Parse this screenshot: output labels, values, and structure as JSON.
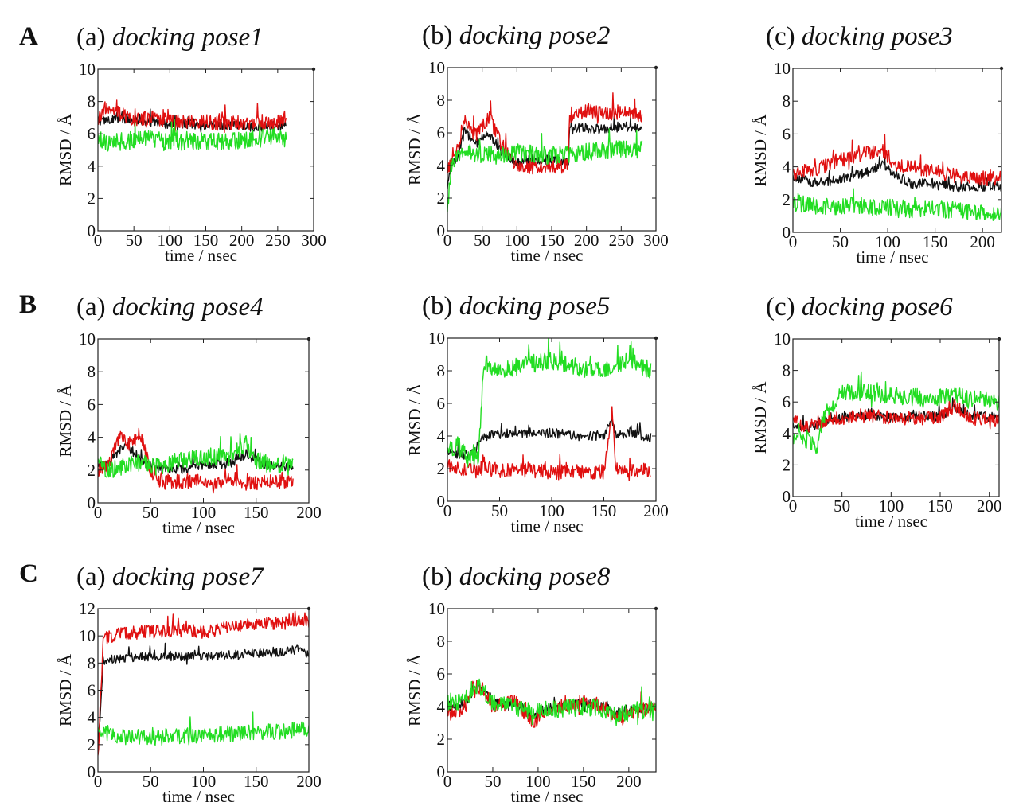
{
  "colors": {
    "black": "#111111",
    "red": "#e01010",
    "green": "#22dd22",
    "axis": "#222222"
  },
  "row_labels": [
    "A",
    "B",
    "C"
  ],
  "chart_data": [
    {
      "type": "line",
      "row": "A",
      "prefix": "(a)",
      "title": "docking pose1",
      "xlabel": "time / nsec",
      "ylabel": "RMSD / Å",
      "xlim": [
        0,
        300
      ],
      "ylim": [
        0,
        10
      ],
      "xticks": [
        0,
        50,
        100,
        150,
        200,
        250,
        300
      ],
      "yticks": [
        0,
        2,
        4,
        6,
        8,
        10
      ],
      "series": [
        {
          "color": "black",
          "x": [
            0,
            25,
            50,
            75,
            100,
            125,
            150,
            175,
            200,
            225,
            250,
            262
          ],
          "y": [
            6.8,
            7.0,
            6.9,
            6.7,
            6.6,
            6.6,
            6.5,
            6.5,
            6.5,
            6.4,
            6.5,
            6.6
          ]
        },
        {
          "color": "red",
          "x": [
            0,
            10,
            25,
            50,
            75,
            100,
            125,
            150,
            175,
            200,
            225,
            250,
            262
          ],
          "y": [
            6.9,
            7.6,
            7.4,
            6.8,
            7.0,
            6.8,
            6.7,
            6.8,
            6.6,
            6.7,
            6.6,
            6.8,
            7.0
          ]
        },
        {
          "color": "green",
          "x": [
            0,
            25,
            50,
            75,
            100,
            125,
            150,
            175,
            200,
            225,
            250,
            262
          ],
          "y": [
            5.4,
            5.5,
            5.6,
            5.7,
            5.4,
            5.6,
            5.5,
            5.5,
            5.6,
            5.7,
            5.9,
            5.6
          ]
        }
      ]
    },
    {
      "type": "line",
      "row": "A",
      "prefix": "(b)",
      "title": "docking pose2",
      "xlabel": "time / nsec",
      "ylabel": "RMSD / Å",
      "xlim": [
        0,
        300
      ],
      "ylim": [
        0,
        10
      ],
      "xticks": [
        0,
        50,
        100,
        150,
        200,
        250,
        300
      ],
      "yticks": [
        0,
        2,
        4,
        6,
        8,
        10
      ],
      "series": [
        {
          "color": "black",
          "x": [
            0,
            5,
            15,
            25,
            40,
            60,
            75,
            100,
            125,
            150,
            174,
            176,
            200,
            225,
            250,
            280
          ],
          "y": [
            2.5,
            4.2,
            4.5,
            6.2,
            5.3,
            6.0,
            5.0,
            4.2,
            4.3,
            4.4,
            4.2,
            6.3,
            6.3,
            6.2,
            6.4,
            6.3
          ]
        },
        {
          "color": "red",
          "x": [
            0,
            5,
            15,
            25,
            40,
            60,
            75,
            100,
            125,
            150,
            174,
            176,
            200,
            225,
            250,
            280
          ],
          "y": [
            3.5,
            4.5,
            5.0,
            7.0,
            5.8,
            7.0,
            5.5,
            4.0,
            3.9,
            3.9,
            4.0,
            7.0,
            7.4,
            7.2,
            7.3,
            7.0
          ]
        },
        {
          "color": "green",
          "x": [
            0,
            5,
            15,
            25,
            50,
            75,
            100,
            125,
            150,
            175,
            200,
            225,
            250,
            280
          ],
          "y": [
            1.0,
            4.0,
            4.6,
            4.8,
            4.7,
            4.6,
            4.8,
            4.7,
            4.6,
            4.7,
            4.8,
            4.9,
            5.0,
            5.0
          ]
        }
      ]
    },
    {
      "type": "line",
      "row": "A",
      "prefix": "(c)",
      "title": "docking pose3",
      "xlabel": "time / nsec",
      "ylabel": "RMSD / Å",
      "xlim": [
        0,
        220
      ],
      "ylim": [
        0,
        10
      ],
      "xticks": [
        0,
        50,
        100,
        150,
        200
      ],
      "yticks": [
        0,
        2,
        4,
        6,
        8,
        10
      ],
      "series": [
        {
          "color": "black",
          "x": [
            0,
            25,
            50,
            75,
            95,
            110,
            125,
            150,
            175,
            200,
            220
          ],
          "y": [
            3.4,
            3.0,
            3.2,
            3.6,
            4.2,
            3.4,
            3.0,
            3.0,
            2.8,
            2.8,
            2.8
          ]
        },
        {
          "color": "red",
          "x": [
            0,
            25,
            50,
            75,
            95,
            110,
            125,
            150,
            175,
            200,
            220
          ],
          "y": [
            3.6,
            3.8,
            4.4,
            4.8,
            5.0,
            4.0,
            4.0,
            3.7,
            3.4,
            3.3,
            3.3
          ]
        },
        {
          "color": "green",
          "x": [
            0,
            25,
            50,
            75,
            100,
            125,
            150,
            175,
            200,
            220
          ],
          "y": [
            1.8,
            1.6,
            1.6,
            1.6,
            1.5,
            1.4,
            1.5,
            1.3,
            1.3,
            1.2
          ]
        }
      ]
    },
    {
      "type": "line",
      "row": "B",
      "prefix": "(a)",
      "title": "docking pose4",
      "xlabel": "time / nsec",
      "ylabel": "RMSD / Å",
      "xlim": [
        0,
        200
      ],
      "ylim": [
        0,
        10
      ],
      "xticks": [
        0,
        50,
        100,
        150,
        200
      ],
      "yticks": [
        0,
        2,
        4,
        6,
        8,
        10
      ],
      "series": [
        {
          "color": "black",
          "x": [
            0,
            10,
            25,
            35,
            45,
            55,
            75,
            100,
            125,
            140,
            150,
            165,
            185
          ],
          "y": [
            2.2,
            2.4,
            3.6,
            3.0,
            2.4,
            2.1,
            2.0,
            2.3,
            2.4,
            3.0,
            2.6,
            2.2,
            2.2
          ]
        },
        {
          "color": "red",
          "x": [
            0,
            10,
            20,
            30,
            40,
            50,
            55,
            75,
            100,
            125,
            150,
            165,
            185
          ],
          "y": [
            2.0,
            2.2,
            4.0,
            3.6,
            4.2,
            2.0,
            1.4,
            1.3,
            1.3,
            1.2,
            1.2,
            1.3,
            1.2
          ]
        },
        {
          "color": "green",
          "x": [
            0,
            10,
            25,
            40,
            55,
            75,
            100,
            125,
            140,
            150,
            165,
            185
          ],
          "y": [
            2.5,
            2.0,
            2.2,
            2.5,
            2.2,
            2.6,
            2.8,
            2.8,
            3.6,
            2.6,
            2.3,
            2.2
          ]
        }
      ]
    },
    {
      "type": "line",
      "row": "B",
      "prefix": "(b)",
      "title": "docking pose5",
      "xlabel": "time / nsec",
      "ylabel": "RMSD / Å",
      "xlim": [
        0,
        200
      ],
      "ylim": [
        0,
        10
      ],
      "xticks": [
        0,
        50,
        100,
        150,
        200
      ],
      "yticks": [
        0,
        2,
        4,
        6,
        8,
        10
      ],
      "series": [
        {
          "color": "black",
          "x": [
            0,
            15,
            25,
            35,
            50,
            75,
            100,
            125,
            150,
            158,
            162,
            175,
            195
          ],
          "y": [
            3.0,
            2.8,
            3.0,
            4.0,
            4.1,
            4.2,
            4.2,
            4.0,
            4.0,
            5.0,
            4.0,
            4.2,
            3.9
          ]
        },
        {
          "color": "red",
          "x": [
            0,
            15,
            25,
            50,
            75,
            100,
            125,
            150,
            158,
            162,
            175,
            195
          ],
          "y": [
            2.2,
            2.0,
            2.1,
            1.9,
            1.9,
            1.8,
            1.8,
            1.8,
            5.5,
            1.9,
            1.9,
            1.9
          ]
        },
        {
          "color": "green",
          "x": [
            0,
            10,
            20,
            30,
            35,
            50,
            75,
            100,
            125,
            150,
            175,
            195
          ],
          "y": [
            3.0,
            3.5,
            2.5,
            3.0,
            8.5,
            8.0,
            8.4,
            8.6,
            8.2,
            8.0,
            8.6,
            8.0
          ]
        }
      ]
    },
    {
      "type": "line",
      "row": "B",
      "prefix": "(c)",
      "title": "docking pose6",
      "xlabel": "time / nsec",
      "ylabel": "RMSD / Å",
      "xlim": [
        0,
        210
      ],
      "ylim": [
        0,
        10
      ],
      "xticks": [
        0,
        50,
        100,
        150,
        200
      ],
      "yticks": [
        0,
        2,
        4,
        6,
        8,
        10
      ],
      "series": [
        {
          "color": "black",
          "x": [
            0,
            15,
            30,
            50,
            75,
            100,
            125,
            150,
            165,
            180,
            210
          ],
          "y": [
            4.6,
            4.3,
            4.8,
            5.0,
            5.1,
            5.0,
            5.1,
            5.1,
            5.6,
            5.2,
            5.0
          ]
        },
        {
          "color": "red",
          "x": [
            0,
            15,
            30,
            50,
            75,
            100,
            125,
            150,
            165,
            180,
            210
          ],
          "y": [
            4.8,
            4.4,
            4.8,
            5.0,
            5.1,
            5.0,
            5.0,
            5.0,
            5.8,
            5.0,
            4.8
          ]
        },
        {
          "color": "green",
          "x": [
            0,
            10,
            25,
            30,
            50,
            75,
            100,
            125,
            150,
            165,
            180,
            210
          ],
          "y": [
            3.6,
            3.8,
            3.0,
            5.0,
            6.6,
            6.6,
            6.4,
            6.3,
            6.3,
            6.4,
            6.2,
            6.0
          ]
        }
      ]
    },
    {
      "type": "line",
      "row": "C",
      "prefix": "(a)",
      "title": "docking pose7",
      "xlabel": "time / nsec",
      "ylabel": "RMSD / Å",
      "xlim": [
        0,
        200
      ],
      "ylim": [
        0,
        12
      ],
      "xticks": [
        0,
        50,
        100,
        150,
        200
      ],
      "yticks": [
        0,
        2,
        4,
        6,
        8,
        10,
        12
      ],
      "series": [
        {
          "color": "black",
          "x": [
            0,
            5,
            25,
            50,
            75,
            100,
            125,
            150,
            175,
            190,
            200
          ],
          "y": [
            1.5,
            8.2,
            8.4,
            8.5,
            8.5,
            8.5,
            8.6,
            8.7,
            8.8,
            9.0,
            8.6
          ]
        },
        {
          "color": "red",
          "x": [
            0,
            5,
            25,
            50,
            75,
            100,
            125,
            150,
            175,
            190,
            200
          ],
          "y": [
            1.0,
            9.8,
            10.2,
            10.3,
            10.4,
            10.3,
            10.6,
            10.8,
            11.0,
            11.3,
            11.0
          ]
        },
        {
          "color": "green",
          "x": [
            0,
            10,
            25,
            50,
            75,
            100,
            125,
            150,
            175,
            200
          ],
          "y": [
            3.0,
            2.8,
            2.6,
            2.5,
            2.6,
            2.7,
            2.8,
            2.9,
            3.0,
            3.2
          ]
        }
      ]
    },
    {
      "type": "line",
      "row": "C",
      "prefix": "(b)",
      "title": "docking pose8",
      "xlabel": "time / nsec",
      "ylabel": "RMSD / Å",
      "xlim": [
        0,
        230
      ],
      "ylim": [
        0,
        10
      ],
      "xticks": [
        0,
        50,
        100,
        150,
        200
      ],
      "yticks": [
        0,
        2,
        4,
        6,
        8,
        10
      ],
      "series": [
        {
          "color": "black",
          "x": [
            0,
            20,
            30,
            40,
            50,
            75,
            95,
            105,
            125,
            150,
            175,
            185,
            200,
            230
          ],
          "y": [
            4.0,
            4.2,
            5.2,
            5.0,
            4.2,
            4.2,
            3.4,
            3.8,
            4.0,
            4.2,
            4.0,
            3.6,
            3.8,
            4.0
          ]
        },
        {
          "color": "red",
          "x": [
            0,
            20,
            30,
            40,
            50,
            75,
            95,
            105,
            125,
            150,
            175,
            185,
            200,
            230
          ],
          "y": [
            3.5,
            4.0,
            5.4,
            5.0,
            4.0,
            4.3,
            3.0,
            3.6,
            4.0,
            4.3,
            4.0,
            3.2,
            3.6,
            4.0
          ]
        },
        {
          "color": "green",
          "x": [
            0,
            20,
            30,
            40,
            50,
            75,
            95,
            105,
            125,
            150,
            175,
            185,
            200,
            230
          ],
          "y": [
            4.2,
            4.4,
            5.4,
            5.0,
            4.2,
            4.0,
            3.6,
            3.8,
            3.8,
            4.0,
            3.8,
            3.4,
            3.6,
            3.8
          ]
        }
      ]
    }
  ]
}
